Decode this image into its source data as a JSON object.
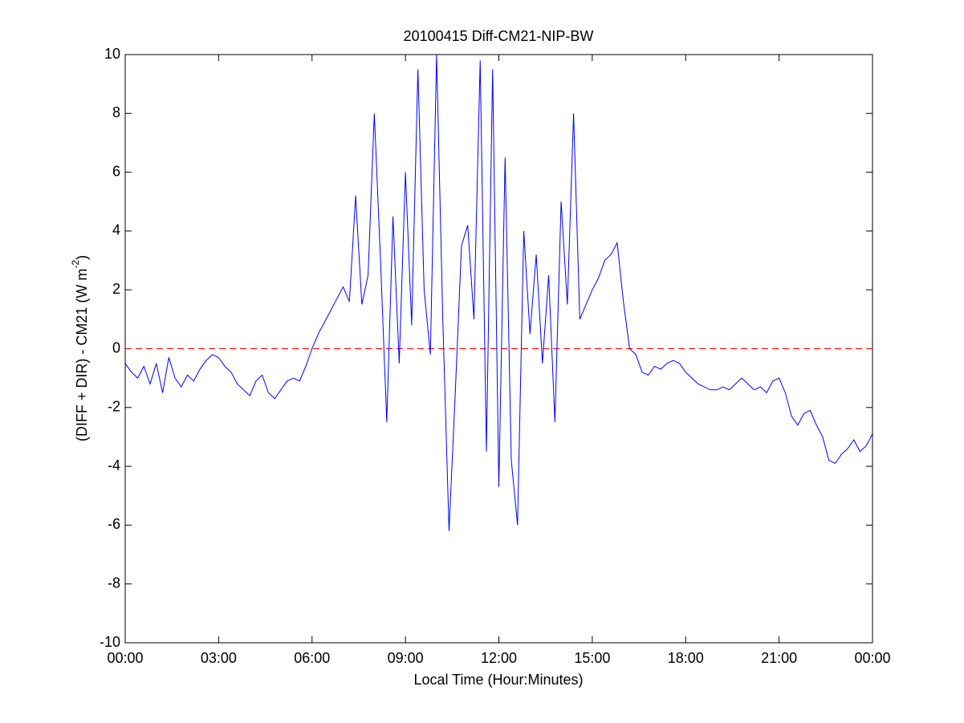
{
  "chart_data": {
    "type": "line",
    "title": "20100415 Diff-CM21-NIP-BW",
    "xlabel": "Local Time (Hour:Minutes)",
    "ylabel_parts": [
      "(DIFF + DIR) - CM21 (W m",
      "-2",
      ")"
    ],
    "x": [
      0,
      0.2,
      0.4,
      0.6,
      0.8,
      1,
      1.2,
      1.4,
      1.6,
      1.8,
      2,
      2.2,
      2.4,
      2.6,
      2.8,
      3,
      3.2,
      3.4,
      3.6,
      3.8,
      4,
      4.2,
      4.4,
      4.6,
      4.8,
      5,
      5.2,
      5.4,
      5.6,
      5.8,
      6,
      6.2,
      6.4,
      6.6,
      6.8,
      7,
      7.2,
      7.4,
      7.6,
      7.8,
      8,
      8.2,
      8.4,
      8.6,
      8.8,
      9,
      9.2,
      9.4,
      9.6,
      9.8,
      10,
      10.2,
      10.4,
      10.6,
      10.8,
      11,
      11.2,
      11.4,
      11.6,
      11.8,
      12,
      12.2,
      12.4,
      12.6,
      12.8,
      13,
      13.2,
      13.4,
      13.6,
      13.8,
      14,
      14.2,
      14.4,
      14.6,
      14.8,
      15,
      15.2,
      15.4,
      15.6,
      15.8,
      16,
      16.2,
      16.4,
      16.6,
      16.8,
      17,
      17.2,
      17.4,
      17.6,
      17.8,
      18,
      18.2,
      18.4,
      18.6,
      18.8,
      19,
      19.2,
      19.4,
      19.6,
      19.8,
      20,
      20.2,
      20.4,
      20.6,
      20.8,
      21,
      21.2,
      21.4,
      21.6,
      21.8,
      22,
      22.2,
      22.4,
      22.6,
      22.8,
      23,
      23.2,
      23.4,
      23.6,
      23.8,
      24
    ],
    "series": [
      {
        "name": "Diff-CM21-NIP-BW",
        "color": "#0000ff",
        "values": [
          -0.5,
          -0.8,
          -1.0,
          -0.6,
          -1.2,
          -0.5,
          -1.5,
          -0.3,
          -1.0,
          -1.3,
          -0.9,
          -1.1,
          -0.7,
          -0.4,
          -0.2,
          -0.3,
          -0.6,
          -0.8,
          -1.2,
          -1.4,
          -1.6,
          -1.1,
          -0.9,
          -1.5,
          -1.7,
          -1.4,
          -1.1,
          -1.0,
          -1.1,
          -0.6,
          0.0,
          0.5,
          0.9,
          1.3,
          1.7,
          2.1,
          1.6,
          5.2,
          1.5,
          2.5,
          8.0,
          3.0,
          -2.5,
          4.5,
          -0.5,
          6.0,
          0.8,
          9.5,
          2.0,
          -0.2,
          10,
          1.0,
          -6.2,
          -1.5,
          3.5,
          4.2,
          1.0,
          9.8,
          -3.5,
          9.5,
          -4.7,
          6.5,
          -3.8,
          -6.0,
          4.0,
          0.5,
          3.2,
          -0.5,
          2.5,
          -2.5,
          5.0,
          1.5,
          8.0,
          1.0,
          1.5,
          2.0,
          2.4,
          3.0,
          3.2,
          3.6,
          1.6,
          0.0,
          -0.2,
          -0.8,
          -0.9,
          -0.6,
          -0.7,
          -0.5,
          -0.4,
          -0.5,
          -0.8,
          -1.0,
          -1.2,
          -1.3,
          -1.4,
          -1.4,
          -1.3,
          -1.4,
          -1.2,
          -1.0,
          -1.2,
          -1.4,
          -1.3,
          -1.5,
          -1.1,
          -1.0,
          -1.5,
          -2.3,
          -2.6,
          -2.2,
          -2.1,
          -2.6,
          -3.0,
          -3.8,
          -3.9,
          -3.6,
          -3.4,
          -3.1,
          -3.5,
          -3.3,
          -2.9
        ]
      }
    ],
    "reference_line": {
      "value": 0,
      "color": "#ff0000"
    },
    "xlim": [
      0,
      24
    ],
    "xticks": [
      {
        "value": 0,
        "label": "00:00"
      },
      {
        "value": 3,
        "label": "03:00"
      },
      {
        "value": 6,
        "label": "06:00"
      },
      {
        "value": 9,
        "label": "09:00"
      },
      {
        "value": 12,
        "label": "12:00"
      },
      {
        "value": 15,
        "label": "15:00"
      },
      {
        "value": 18,
        "label": "18:00"
      },
      {
        "value": 21,
        "label": "21:00"
      },
      {
        "value": 24,
        "label": "00:00"
      }
    ],
    "ylim": [
      -10,
      10
    ],
    "yticks": [
      -10,
      -8,
      -6,
      -4,
      -2,
      0,
      2,
      4,
      6,
      8,
      10
    ],
    "grid": false
  }
}
